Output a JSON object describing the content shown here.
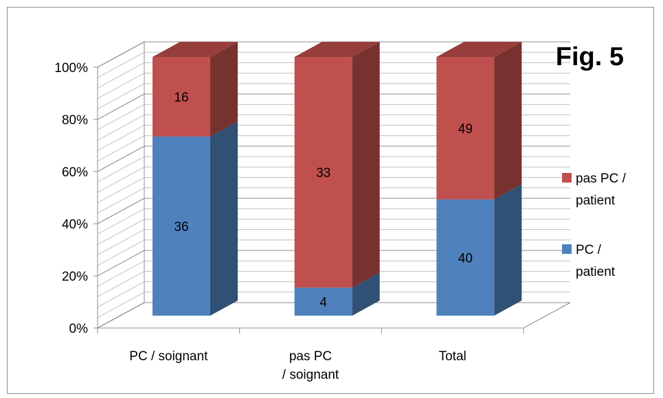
{
  "chart_data": {
    "type": "bar",
    "stacked": "percent",
    "three_d": true,
    "title": "Fig. 5",
    "xlabel": "",
    "ylabel": "",
    "categories": [
      "PC / soignant",
      "pas PC / soignant",
      "Total"
    ],
    "series": [
      {
        "name": "PC / patient",
        "values": [
          36,
          4,
          40
        ],
        "color": "#4f81bd"
      },
      {
        "name": "pas PC / patient",
        "values": [
          16,
          33,
          49
        ],
        "color": "#c0504d"
      }
    ],
    "ylim": [
      0,
      1
    ],
    "yticks": [
      "0%",
      "20%",
      "40%",
      "60%",
      "80%",
      "100%"
    ],
    "grid": true,
    "legend_position": "right"
  }
}
